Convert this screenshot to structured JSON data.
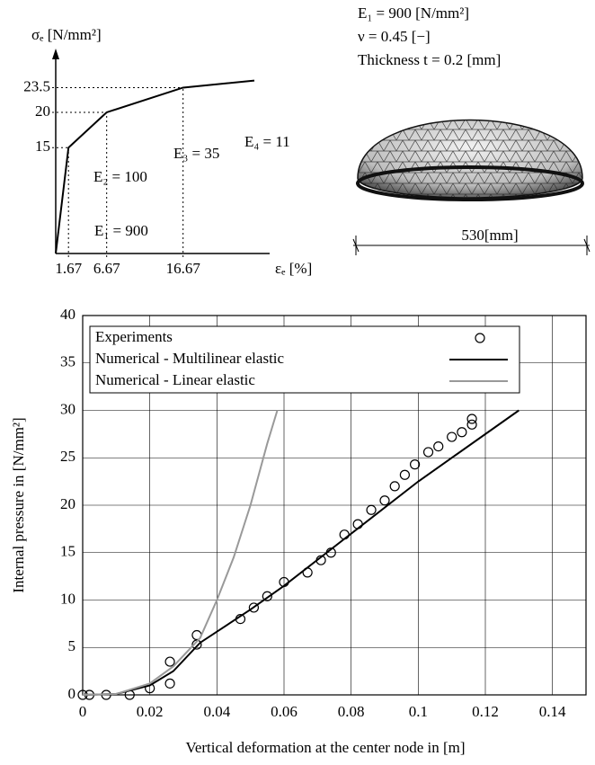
{
  "chart_data": [
    {
      "type": "line",
      "x_label": "εₑ [%]",
      "y_label": "σₑ [N/mm²]",
      "x": [
        0,
        1.67,
        6.67,
        16.67,
        26
      ],
      "values": [
        0,
        15,
        20,
        23.5,
        24.5
      ],
      "xlim": [
        0,
        28
      ],
      "ylim": [
        0,
        27
      ],
      "xticks": [
        1.67,
        6.67,
        16.67
      ],
      "yticks": [
        15,
        20,
        23.5
      ],
      "color": "#000000",
      "annotations": [
        "E₁ = 900",
        "E₂ = 100",
        "E₃ = 35",
        "E₄ = 11"
      ]
    },
    {
      "type": "line",
      "x_label": "Vertical deformation at the center node in [m]",
      "y_label": "Internal pressure in [N/mm²]",
      "xlim": [
        0,
        0.15
      ],
      "ylim": [
        0,
        40
      ],
      "xticks": [
        0,
        0.02,
        0.04,
        0.06,
        0.08,
        0.1,
        0.12,
        0.14
      ],
      "yticks": [
        0,
        5,
        10,
        15,
        20,
        25,
        30,
        35,
        40
      ],
      "grid": true,
      "legend": "upper left",
      "series": [
        {
          "name": "Experiments",
          "type": "scatter",
          "color": "#000000",
          "x": [
            0,
            0.002,
            0.007,
            0.014,
            0.02,
            0.026,
            0.026,
            0.034,
            0.034,
            0.047,
            0.051,
            0.055,
            0.06,
            0.067,
            0.071,
            0.074,
            0.078,
            0.082,
            0.086,
            0.09,
            0.093,
            0.096,
            0.099,
            0.103,
            0.106,
            0.11,
            0.113,
            0.116,
            0.116
          ],
          "values": [
            0,
            0,
            0,
            0,
            0.7,
            3.5,
            1.2,
            6.3,
            5.3,
            8,
            9.2,
            10.4,
            11.9,
            12.9,
            14.2,
            15,
            16.9,
            18,
            19.5,
            20.5,
            22,
            23.2,
            24.3,
            25.6,
            26.2,
            27.2,
            27.7,
            28.5,
            29.1
          ]
        },
        {
          "name": "Numerical - Multilinear elastic",
          "type": "line",
          "color": "#000000",
          "x": [
            0,
            0.01,
            0.02,
            0.027,
            0.035,
            0.05,
            0.06,
            0.08,
            0.1,
            0.13
          ],
          "values": [
            0,
            0.1,
            1,
            2.5,
            5.5,
            9,
            11.5,
            17,
            22.5,
            30
          ]
        },
        {
          "name": "Numerical - Linear elastic",
          "type": "line",
          "color": "#999999",
          "x": [
            0,
            0.01,
            0.02,
            0.027,
            0.035,
            0.04,
            0.045,
            0.05,
            0.055,
            0.058
          ],
          "values": [
            0,
            0.1,
            1.2,
            3,
            6,
            10,
            14.5,
            20,
            26.5,
            30
          ]
        }
      ]
    }
  ],
  "dome_panel": {
    "lines": [
      "E₁ = 900 [N/mm²]",
      "ν = 0.45 [−]",
      "Thickness t = 0.2 [mm]"
    ],
    "dimension": "530[mm]"
  }
}
